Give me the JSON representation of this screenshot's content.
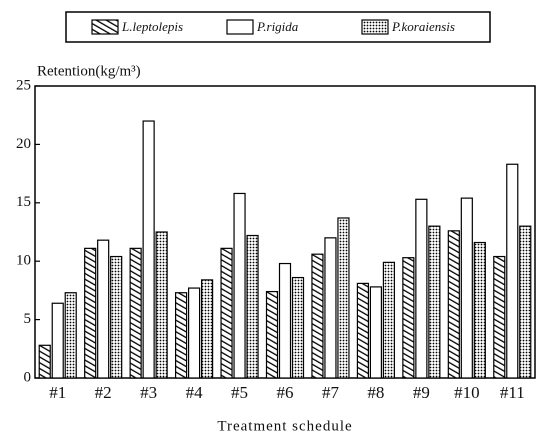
{
  "chart_data": {
    "type": "bar",
    "y_label": "Retention(kg/m³)",
    "x_label": "Treatment schedule",
    "categories": [
      "#1",
      "#2",
      "#3",
      "#4",
      "#5",
      "#6",
      "#7",
      "#8",
      "#9",
      "#10",
      "#11"
    ],
    "series": [
      {
        "name": "L.leptolepis",
        "color": "#000000",
        "pattern": "hatch",
        "values": [
          2.8,
          11.1,
          11.1,
          7.3,
          11.1,
          7.4,
          10.6,
          8.1,
          10.3,
          12.6,
          10.4
        ]
      },
      {
        "name": "P.rigida",
        "color": "#ffffff",
        "pattern": "solid",
        "values": [
          6.4,
          11.8,
          22.0,
          7.7,
          15.8,
          9.8,
          12.0,
          7.8,
          15.3,
          15.4,
          18.3
        ]
      },
      {
        "name": "P.koraiensis",
        "color": "#000000",
        "pattern": "dots",
        "values": [
          7.3,
          10.4,
          12.5,
          8.4,
          12.2,
          8.6,
          13.7,
          9.9,
          13.0,
          11.6,
          13.0
        ]
      }
    ],
    "ylim": [
      0,
      25
    ],
    "yticks": [
      0,
      5,
      10,
      15,
      20,
      25
    ],
    "legend": "top"
  }
}
